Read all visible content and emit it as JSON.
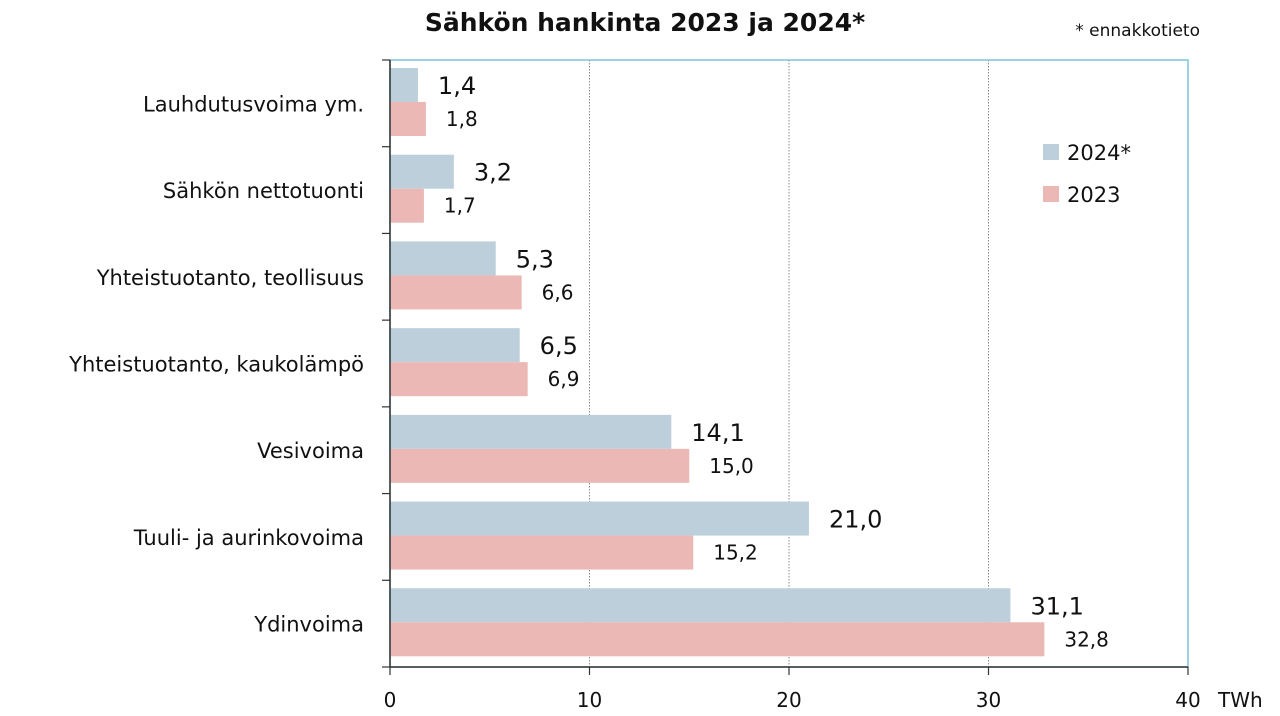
{
  "chart_data": {
    "type": "bar",
    "orientation": "horizontal",
    "title": "Sähkön hankinta 2023 ja 2024*",
    "note": "* ennakkotieto",
    "xlabel": "TWh",
    "xlim": [
      0,
      40
    ],
    "xticks": [
      "0",
      "10",
      "20",
      "30",
      "40"
    ],
    "grid": true,
    "legend_position": "top-right",
    "categories": [
      "Lauhdutusvoima ym.",
      "Sähkön nettotuonti",
      "Yhteistuotanto, teollisuus",
      "Yhteistuotanto, kaukolämpö",
      "Vesivoima",
      "Tuuli- ja aurinkovoima",
      "Ydinvoima"
    ],
    "series": [
      {
        "name": "2024*",
        "color": "#bccfdb",
        "values": [
          1.4,
          3.2,
          5.3,
          6.5,
          14.1,
          21.0,
          31.1
        ],
        "labels": [
          "1,4",
          "3,2",
          "5,3",
          "6,5",
          "14,1",
          "21,0",
          "31,1"
        ]
      },
      {
        "name": "2023",
        "color": "#ebb8b6",
        "values": [
          1.8,
          1.7,
          6.6,
          6.9,
          15.0,
          15.2,
          32.8
        ],
        "labels": [
          "1,8",
          "1,7",
          "6,6",
          "6,9",
          "15,0",
          "15,2",
          "32,8"
        ]
      }
    ]
  }
}
